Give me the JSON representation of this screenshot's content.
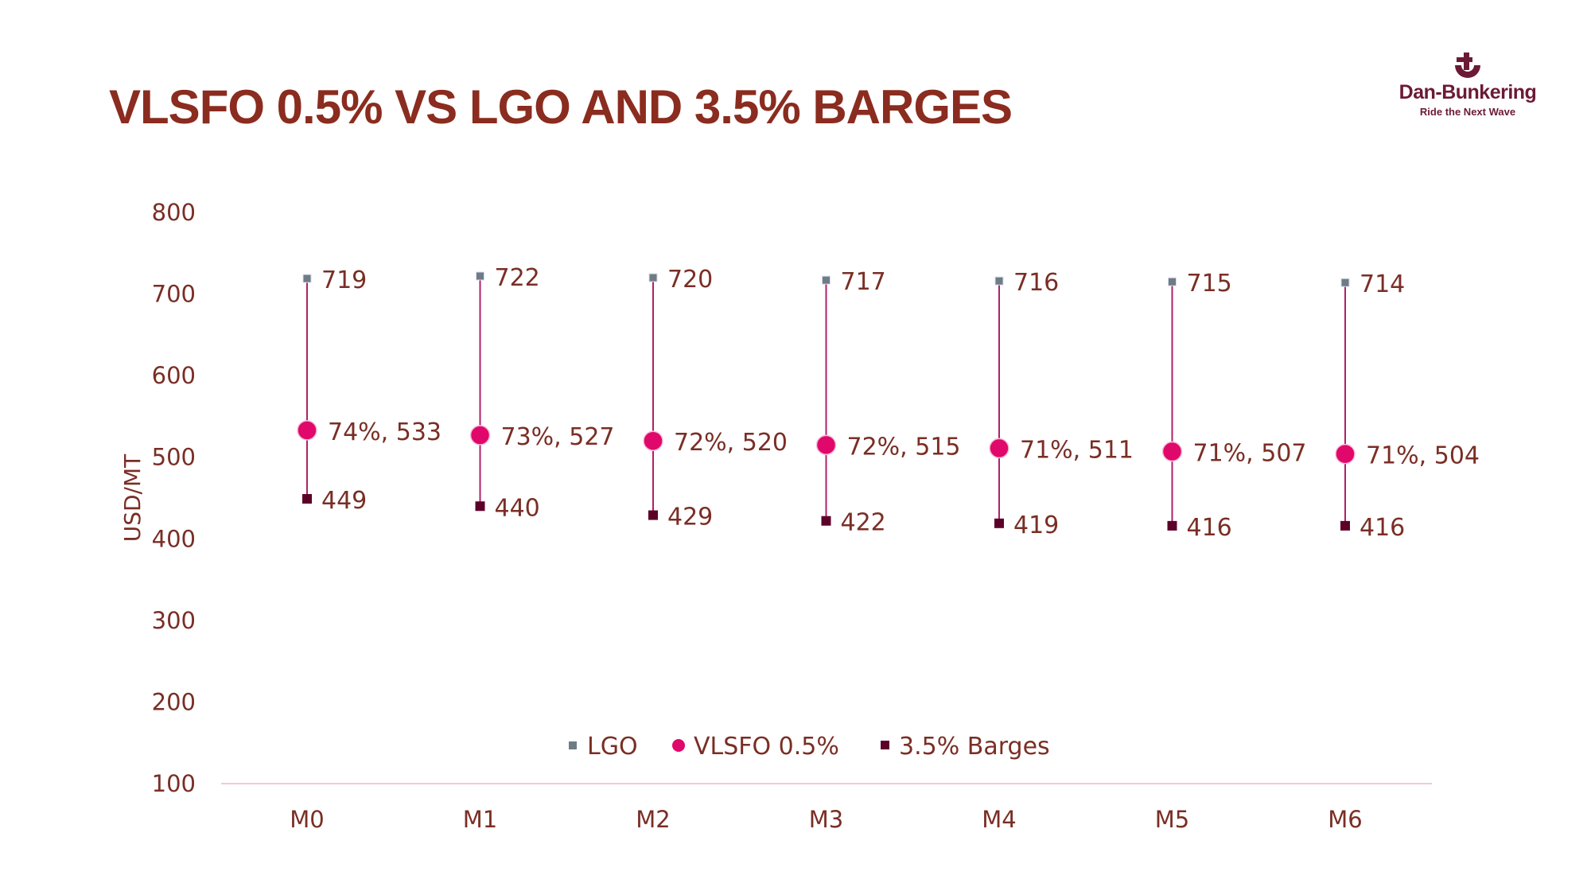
{
  "title": "VLSFO 0.5% VS LGO AND 3.5% BARGES",
  "logo": {
    "brand": "Dan-Bunkering",
    "tagline": "Ride the Next Wave"
  },
  "colors": {
    "title": "#8a2c1f",
    "text": "#7a2e25",
    "lgo": "#6e7c85",
    "vlsfo": "#e0086a",
    "barges": "#5c0028",
    "range_line": "#b0206a",
    "axis": "#f2c8d8",
    "logo": "#6b1a35"
  },
  "chart_data": {
    "type": "scatter",
    "title": "VLSFO 0.5% VS LGO AND 3.5% BARGES",
    "ylabel": "USD/MT",
    "xlabel": "",
    "ylim": [
      100,
      800
    ],
    "yticks": [
      800,
      700,
      600,
      500,
      400,
      300,
      200,
      100
    ],
    "categories": [
      "M0",
      "M1",
      "M2",
      "M3",
      "M4",
      "M5",
      "M6"
    ],
    "grid": false,
    "legend_placement": "bottom-inside",
    "series": [
      {
        "name": "LGO",
        "marker": "square",
        "values": [
          719,
          722,
          720,
          717,
          716,
          715,
          714
        ],
        "labels": [
          "719",
          "722",
          "720",
          "717",
          "716",
          "715",
          "714"
        ]
      },
      {
        "name": "VLSFO 0.5%",
        "marker": "circle",
        "values": [
          533,
          527,
          520,
          515,
          511,
          507,
          504
        ],
        "labels": [
          "74%, 533",
          "73%, 527",
          "72%, 520",
          "72%, 515",
          "71%, 511",
          "71%, 507",
          "71%, 504"
        ]
      },
      {
        "name": "3.5% Barges",
        "marker": "square",
        "values": [
          449,
          440,
          429,
          422,
          419,
          416,
          416
        ],
        "labels": [
          "449",
          "440",
          "429",
          "422",
          "419",
          "416",
          "416"
        ]
      }
    ]
  }
}
